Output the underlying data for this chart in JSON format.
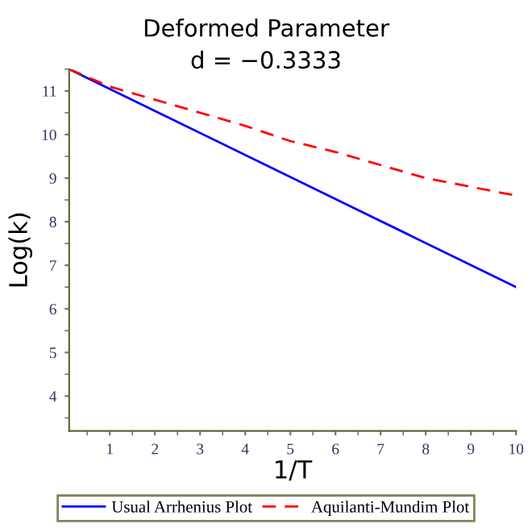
{
  "chart_data": {
    "type": "line",
    "title": "Deformed Parameter",
    "subtitle": "d = −0.3333",
    "xlabel": "1/T",
    "ylabel": "Log(k)",
    "xlim": [
      0.1,
      10
    ],
    "ylim": [
      3.2,
      11.5
    ],
    "xticks": [
      1,
      2,
      3,
      4,
      5,
      6,
      7,
      8,
      9,
      10
    ],
    "yticks": [
      4,
      5,
      6,
      7,
      8,
      9,
      10,
      11
    ],
    "grid": false,
    "legend": "bottom",
    "series": [
      {
        "name": "Usual Arrhenius Plot",
        "color": "#0000ff",
        "line_style": "solid",
        "x": [
          0.1,
          10
        ],
        "values": [
          11.5,
          6.5
        ]
      },
      {
        "name": "Aquilanti-Mundim Plot",
        "color": "#ff0000",
        "line_style": "dashed",
        "x": [
          0.1,
          1,
          2,
          3,
          4,
          5,
          6,
          7,
          8,
          9,
          10
        ],
        "values": [
          11.5,
          11.1,
          10.8,
          10.5,
          10.2,
          9.85,
          9.6,
          9.3,
          9.0,
          8.8,
          8.6
        ]
      }
    ]
  }
}
